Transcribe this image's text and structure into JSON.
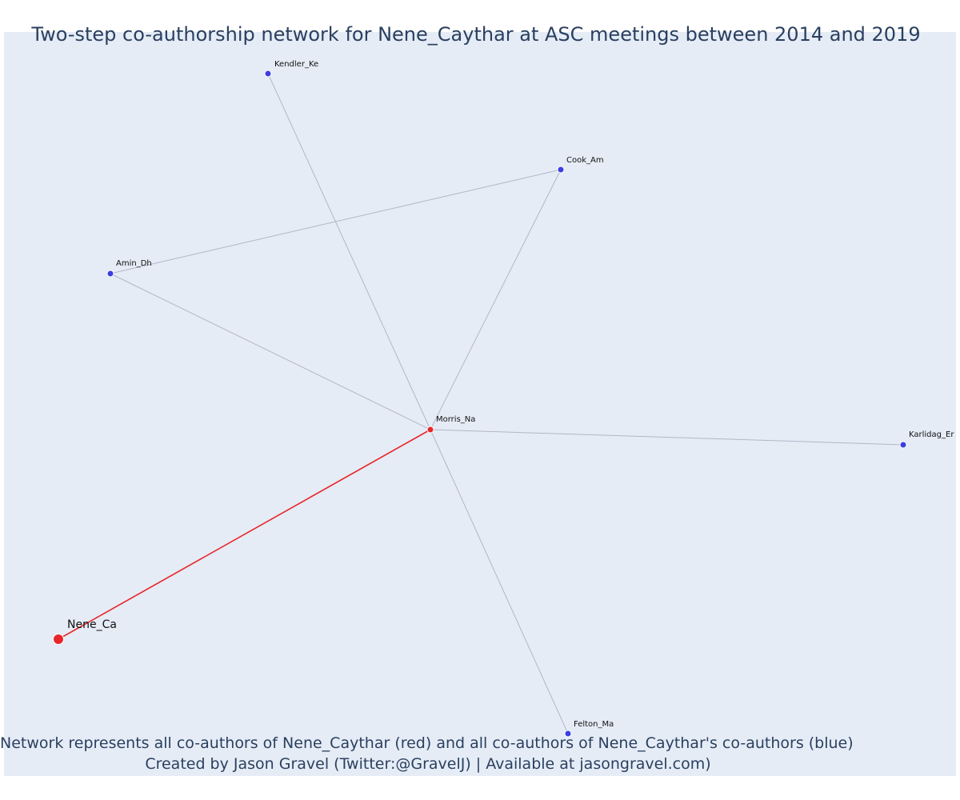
{
  "title": "Two-step co-authorship network for Nene_Caythar at ASC meetings between 2014 and 2019",
  "caption": {
    "line1": "Network represents all co-authors of Nene_Caythar (red) and all co-authors of Nene_Caythar's co-authors (blue)",
    "line2": "Created by Jason Gravel (Twitter:@GravelJ) | Available at jasongravel.com)"
  },
  "colors": {
    "background": "#e5ecf6",
    "coauthor_node": "#e8262a",
    "second_step_node": "#3b3fe0",
    "focus_edge": "#e8262a",
    "other_edge": "#b3b6c7"
  },
  "nodes": [
    {
      "id": "Nene_Ca",
      "label": "Nene_Ca",
      "group": "focus"
    },
    {
      "id": "Morris_Na",
      "label": "Morris_Na",
      "group": "coauthor"
    },
    {
      "id": "Kendler_Ke",
      "label": "Kendler_Ke",
      "group": "second-step"
    },
    {
      "id": "Cook_Am",
      "label": "Cook_Am",
      "group": "second-step"
    },
    {
      "id": "Amin_Dh",
      "label": "Amin_Dh",
      "group": "second-step"
    },
    {
      "id": "Karlidag_Er",
      "label": "Karlidag_Er",
      "group": "second-step"
    },
    {
      "id": "Felton_Ma",
      "label": "Felton_Ma",
      "group": "second-step"
    }
  ],
  "edges": [
    {
      "source": "Nene_Ca",
      "target": "Morris_Na",
      "type": "focus"
    },
    {
      "source": "Morris_Na",
      "target": "Kendler_Ke",
      "type": "other"
    },
    {
      "source": "Morris_Na",
      "target": "Cook_Am",
      "type": "other"
    },
    {
      "source": "Morris_Na",
      "target": "Amin_Dh",
      "type": "other"
    },
    {
      "source": "Morris_Na",
      "target": "Karlidag_Er",
      "type": "other"
    },
    {
      "source": "Morris_Na",
      "target": "Felton_Ma",
      "type": "other"
    },
    {
      "source": "Amin_Dh",
      "target": "Cook_Am",
      "type": "other"
    }
  ]
}
